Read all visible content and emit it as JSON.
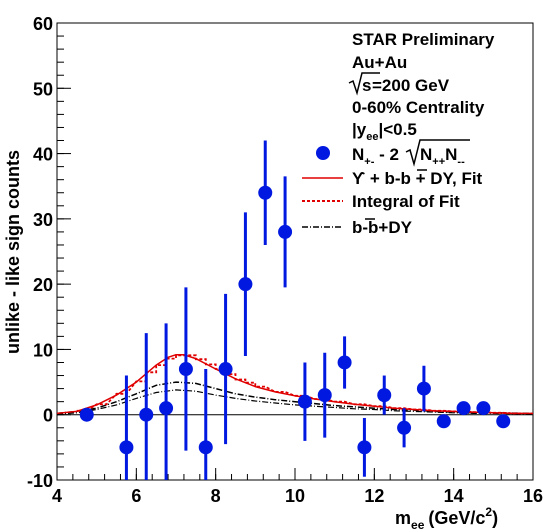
{
  "chart_data": {
    "type": "scatter",
    "xlabel_main": "m",
    "xlabel_sub": "ee",
    "xlabel_units": "(GeV/c",
    "xlabel_sup": "2",
    "xlabel_close": ")",
    "ylabel": "unlike - like sign counts",
    "xlim": [
      4,
      16
    ],
    "ylim": [
      -10,
      60
    ],
    "xticks": [
      4,
      6,
      8,
      10,
      12,
      14,
      16
    ],
    "yticks": [
      -10,
      0,
      10,
      20,
      30,
      40,
      50,
      60
    ],
    "text_block": {
      "line1": "STAR Preliminary",
      "line2": "Au+Au",
      "line3_root": "s",
      "line3_rest": "=200 GeV",
      "line4": "0-60% Centrality",
      "line5_pre": "|y",
      "line5_sub": "ee",
      "line5_post": "|<0.5"
    },
    "legend": {
      "points_label_a": "N",
      "points_label_a_sub": "+-",
      "points_label_b": " - 2",
      "points_label_c": "N",
      "points_label_c_sub": "++",
      "points_label_d": "N",
      "points_label_d_sub": "--",
      "fit_label": "ϒ + b-b + DY, Fit",
      "integral_label": "Integral of Fit",
      "bb_label": "b-b+DY"
    },
    "colors": {
      "points": "#0018e0",
      "fit": "#e00000",
      "bb": "#000000"
    },
    "points": [
      {
        "x": 4.75,
        "y": 0,
        "err": 0
      },
      {
        "x": 5.75,
        "y": -5,
        "err": 11
      },
      {
        "x": 6.25,
        "y": 0,
        "err": 12.5
      },
      {
        "x": 6.75,
        "y": 1,
        "err": 13
      },
      {
        "x": 7.25,
        "y": 7,
        "err": 12.5
      },
      {
        "x": 7.75,
        "y": -5,
        "err": 12
      },
      {
        "x": 8.25,
        "y": 7,
        "err": 11.5
      },
      {
        "x": 8.75,
        "y": 20,
        "err": 11
      },
      {
        "x": 9.25,
        "y": 34,
        "err": 8
      },
      {
        "x": 9.75,
        "y": 28,
        "err": 8.5
      },
      {
        "x": 10.25,
        "y": 2,
        "err": 6
      },
      {
        "x": 10.75,
        "y": 3,
        "err": 6.5
      },
      {
        "x": 11.25,
        "y": 8,
        "err": 4
      },
      {
        "x": 11.75,
        "y": -5,
        "err": 4.5
      },
      {
        "x": 12.25,
        "y": 3,
        "err": 3
      },
      {
        "x": 12.75,
        "y": -2,
        "err": 3
      },
      {
        "x": 13.25,
        "y": 4,
        "err": 3.5
      },
      {
        "x": 13.75,
        "y": -1,
        "err": 1
      },
      {
        "x": 14.25,
        "y": 1,
        "err": 1
      },
      {
        "x": 14.75,
        "y": 1,
        "err": 1
      },
      {
        "x": 15.25,
        "y": -1,
        "err": 0.5
      }
    ],
    "fit_curve": [
      [
        4.0,
        0.2
      ],
      [
        4.5,
        0.5
      ],
      [
        5.0,
        1.5
      ],
      [
        5.5,
        3.0
      ],
      [
        6.0,
        5.0
      ],
      [
        6.5,
        7.6
      ],
      [
        6.8,
        8.8
      ],
      [
        7.0,
        9.2
      ],
      [
        7.2,
        9.2
      ],
      [
        7.5,
        8.6
      ],
      [
        8.0,
        7.0
      ],
      [
        8.5,
        5.5
      ],
      [
        9.0,
        4.3
      ],
      [
        9.5,
        3.5
      ],
      [
        10.0,
        2.9
      ],
      [
        10.5,
        2.4
      ],
      [
        11.0,
        2.0
      ],
      [
        11.5,
        1.6
      ],
      [
        12.0,
        1.3
      ],
      [
        12.5,
        1.0
      ],
      [
        13.0,
        0.8
      ],
      [
        13.5,
        0.6
      ],
      [
        14.0,
        0.5
      ],
      [
        14.5,
        0.4
      ],
      [
        15.0,
        0.3
      ],
      [
        15.5,
        0.2
      ],
      [
        16.0,
        0.2
      ]
    ],
    "integral_steps": [
      [
        4.5,
        0.6
      ],
      [
        5.0,
        1.6
      ],
      [
        5.5,
        3.2
      ],
      [
        6.0,
        5.1
      ],
      [
        6.25,
        6.5
      ],
      [
        6.5,
        7.6
      ],
      [
        6.75,
        8.6
      ],
      [
        7.0,
        9.1
      ],
      [
        7.25,
        9.1
      ],
      [
        7.5,
        8.5
      ],
      [
        7.75,
        7.7
      ],
      [
        8.0,
        7.0
      ],
      [
        8.25,
        6.2
      ],
      [
        8.5,
        5.4
      ],
      [
        8.75,
        4.9
      ],
      [
        9.0,
        4.3
      ],
      [
        9.5,
        3.5
      ],
      [
        10.0,
        2.9
      ],
      [
        10.5,
        2.4
      ],
      [
        11.0,
        2.0
      ],
      [
        11.5,
        1.6
      ],
      [
        12.0,
        1.3
      ],
      [
        12.5,
        1.0
      ],
      [
        13.0,
        0.8
      ],
      [
        13.5,
        0.6
      ],
      [
        14.0,
        0.5
      ],
      [
        14.5,
        0.4
      ],
      [
        15.0,
        0.3
      ],
      [
        15.5,
        0.2
      ]
    ],
    "bb_curve": [
      [
        4.0,
        0.2
      ],
      [
        4.5,
        0.5
      ],
      [
        5.0,
        1.0
      ],
      [
        5.5,
        2.0
      ],
      [
        6.0,
        3.2
      ],
      [
        6.5,
        4.5
      ],
      [
        7.0,
        5.0
      ],
      [
        7.5,
        4.8
      ],
      [
        8.0,
        4.0
      ],
      [
        8.5,
        3.2
      ],
      [
        9.0,
        2.7
      ],
      [
        9.5,
        2.3
      ],
      [
        10.0,
        2.0
      ],
      [
        10.5,
        1.7
      ],
      [
        11.0,
        1.4
      ],
      [
        11.5,
        1.2
      ],
      [
        12.0,
        1.0
      ],
      [
        12.5,
        0.8
      ],
      [
        13.0,
        0.7
      ],
      [
        13.5,
        0.5
      ],
      [
        14.0,
        0.4
      ],
      [
        14.5,
        0.3
      ],
      [
        15.0,
        0.3
      ],
      [
        16.0,
        0.2
      ]
    ],
    "bb_curve2": [
      [
        4.0,
        0.1
      ],
      [
        4.5,
        0.3
      ],
      [
        5.0,
        0.8
      ],
      [
        5.5,
        1.5
      ],
      [
        6.0,
        2.5
      ],
      [
        6.5,
        3.4
      ],
      [
        7.0,
        3.8
      ],
      [
        7.5,
        3.6
      ],
      [
        8.0,
        3.0
      ],
      [
        8.5,
        2.5
      ],
      [
        9.0,
        2.1
      ],
      [
        9.5,
        1.8
      ],
      [
        10.0,
        1.5
      ],
      [
        10.5,
        1.3
      ],
      [
        11.0,
        1.1
      ],
      [
        11.5,
        0.9
      ],
      [
        12.0,
        0.8
      ],
      [
        12.5,
        0.6
      ],
      [
        13.0,
        0.5
      ],
      [
        13.5,
        0.4
      ],
      [
        14.0,
        0.3
      ],
      [
        14.5,
        0.2
      ],
      [
        15.0,
        0.2
      ],
      [
        16.0,
        0.1
      ]
    ]
  }
}
